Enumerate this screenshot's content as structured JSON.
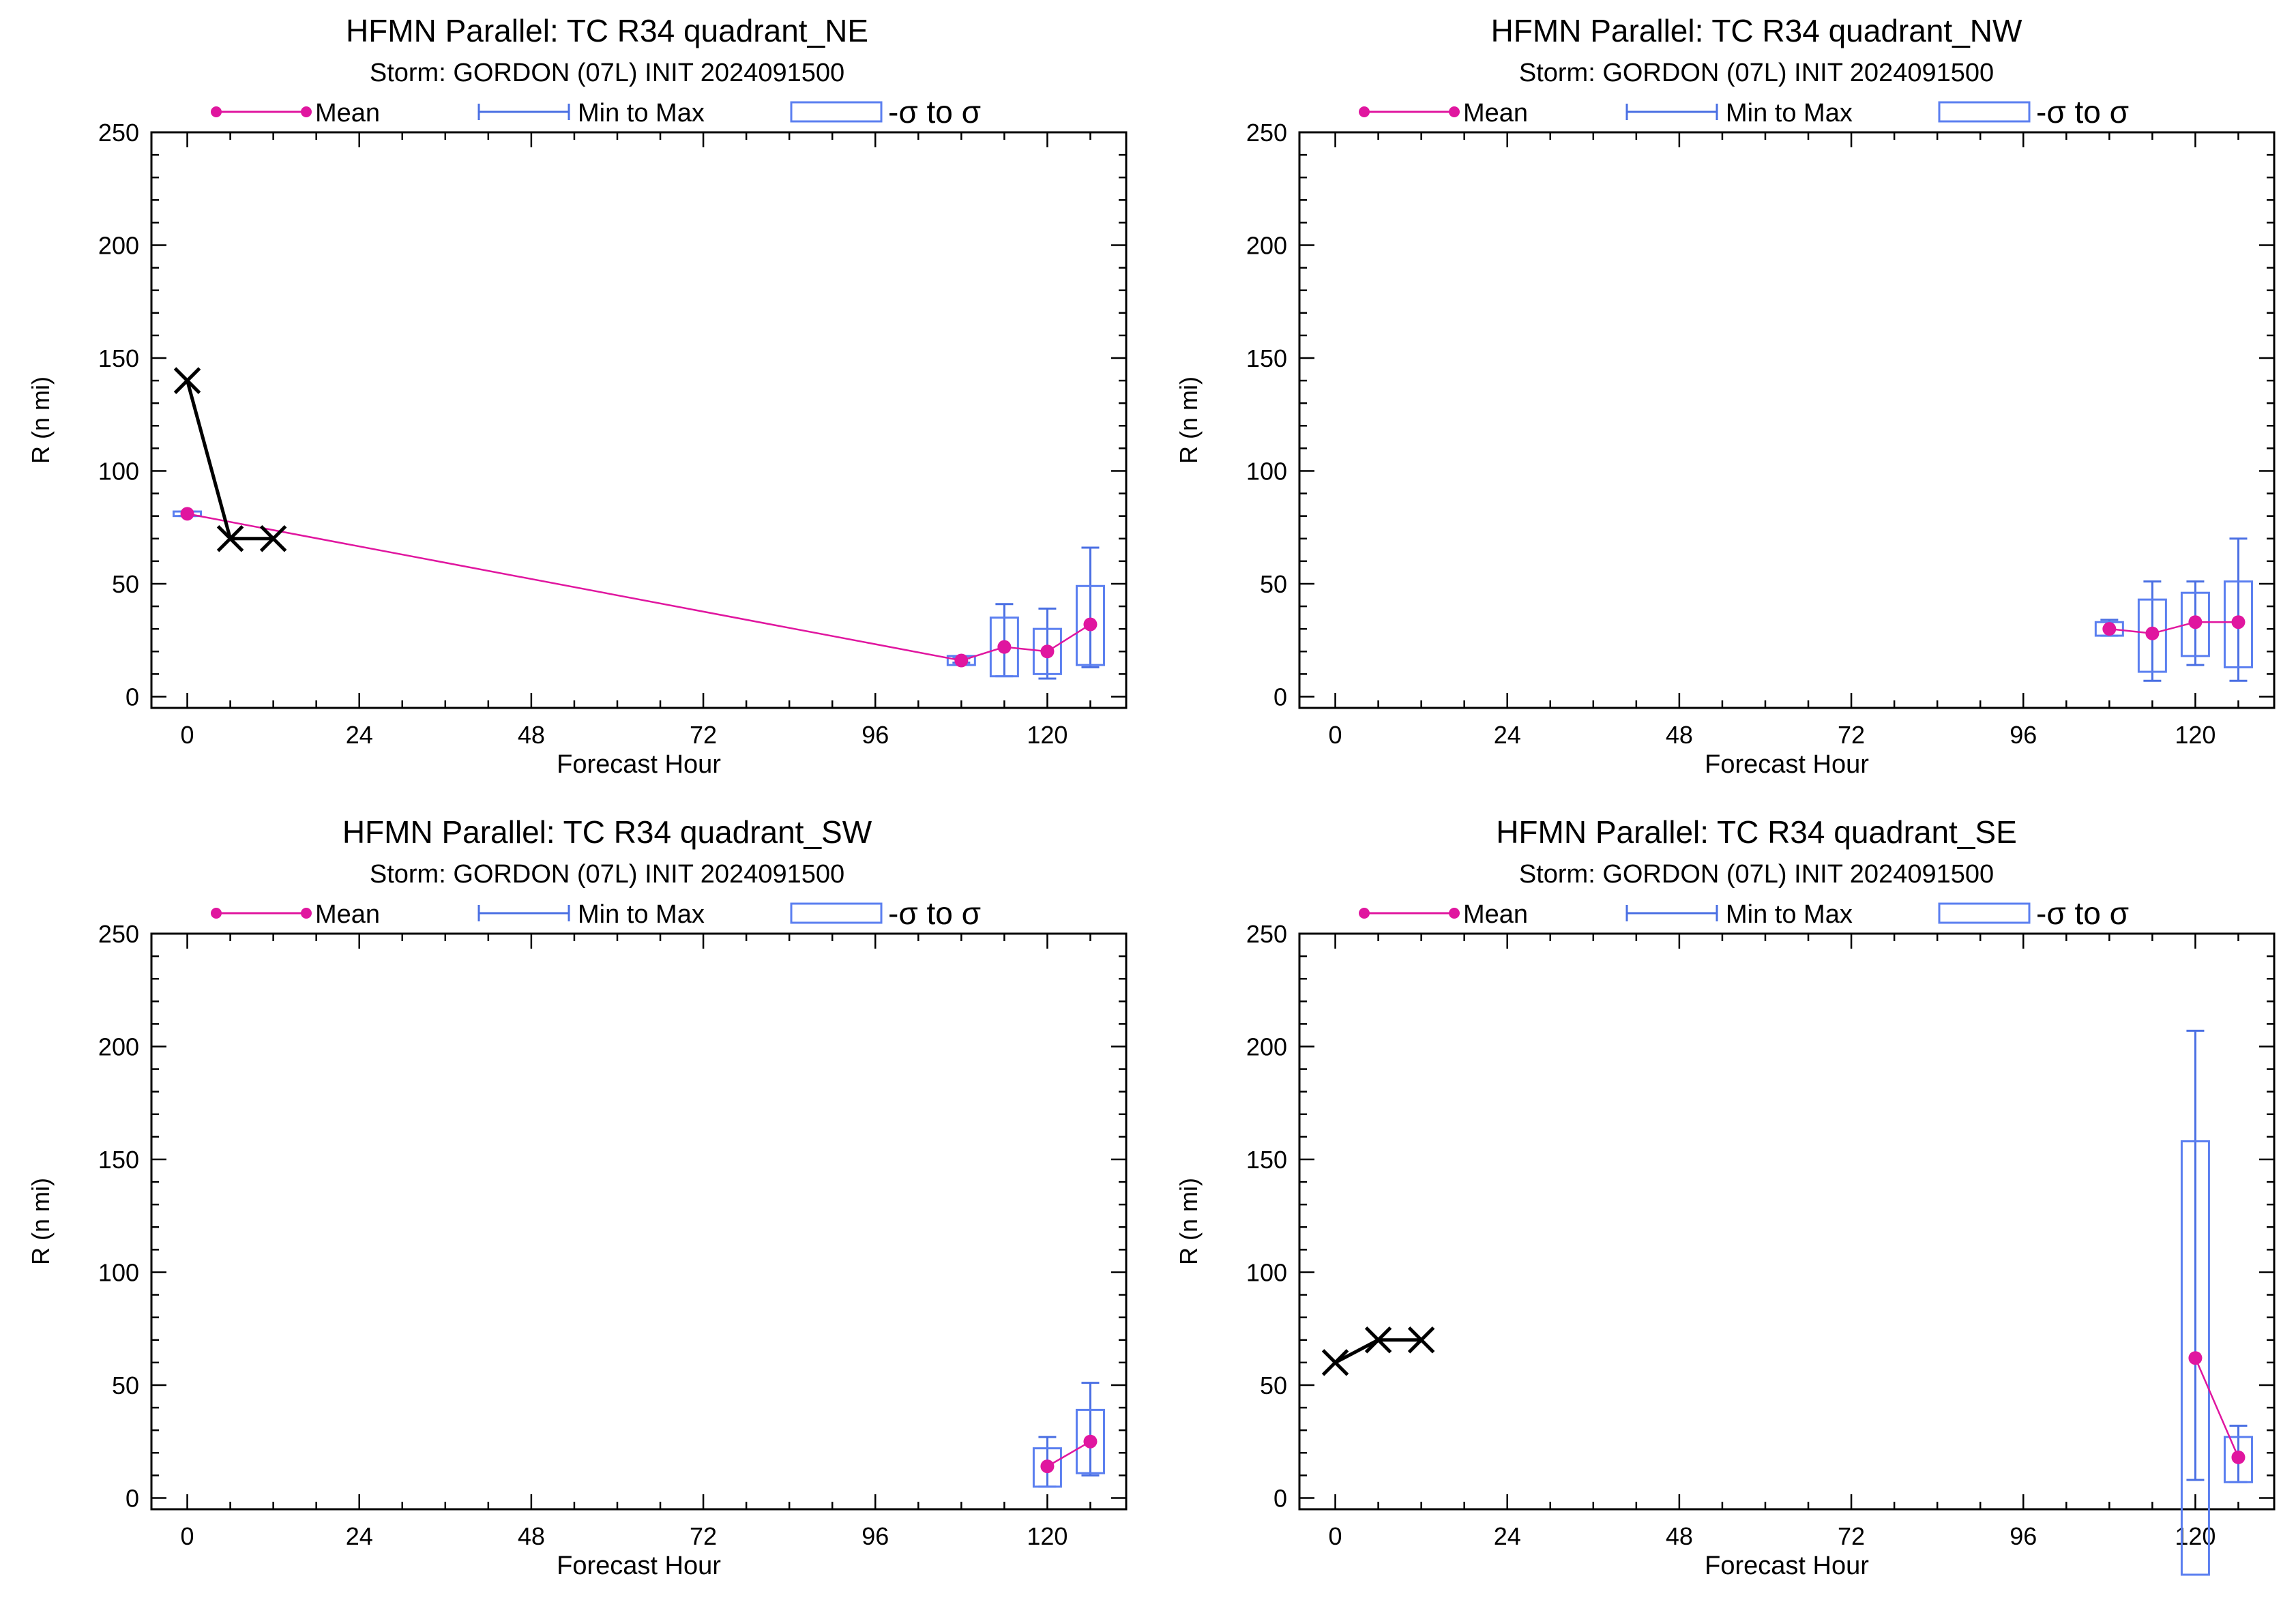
{
  "chart_data": [
    {
      "type": "line",
      "title": "HFMN Parallel: TC  R34 quadrant_NE",
      "subtitle": "Storm: GORDON (07L) INIT 2024091500",
      "xlabel": "Forecast Hour",
      "ylabel": "R (n mi)",
      "xlim": [
        -5,
        131
      ],
      "ylim": [
        -5,
        250
      ],
      "xticks": [
        "0",
        "24",
        "48",
        "72",
        "96",
        "120"
      ],
      "yticks": [
        "0",
        "50",
        "100",
        "150",
        "200",
        "250"
      ],
      "legend": [
        "Mean",
        "Min to Max",
        "-σ to σ"
      ],
      "legend_position": "top",
      "observed": {
        "x": [
          0,
          6,
          12
        ],
        "y": [
          140,
          70,
          70
        ]
      },
      "ensemble": [
        {
          "hour": 0,
          "mean": 81,
          "min": 80,
          "max": 82,
          "sd_low": 80,
          "sd_high": 82
        },
        {
          "hour": 108,
          "mean": 16,
          "min": 15,
          "max": 17,
          "sd_low": 14,
          "sd_high": 18
        },
        {
          "hour": 114,
          "mean": 22,
          "min": 9,
          "max": 41,
          "sd_low": 9,
          "sd_high": 35
        },
        {
          "hour": 120,
          "mean": 20,
          "min": 8,
          "max": 39,
          "sd_low": 10,
          "sd_high": 30
        },
        {
          "hour": 126,
          "mean": 32,
          "min": 13,
          "max": 66,
          "sd_low": 14,
          "sd_high": 49
        }
      ]
    },
    {
      "type": "line",
      "title": "HFMN Parallel: TC  R34 quadrant_NW",
      "subtitle": "Storm: GORDON (07L) INIT 2024091500",
      "xlabel": "Forecast Hour",
      "ylabel": "R (n mi)",
      "xlim": [
        -5,
        131
      ],
      "ylim": [
        -5,
        250
      ],
      "xticks": [
        "0",
        "24",
        "48",
        "72",
        "96",
        "120"
      ],
      "yticks": [
        "0",
        "50",
        "100",
        "150",
        "200",
        "250"
      ],
      "legend": [
        "Mean",
        "Min to Max",
        "-σ to σ"
      ],
      "legend_position": "top",
      "observed": {
        "x": [],
        "y": []
      },
      "ensemble": [
        {
          "hour": 108,
          "mean": 30,
          "min": 27,
          "max": 34,
          "sd_low": 27,
          "sd_high": 33
        },
        {
          "hour": 114,
          "mean": 28,
          "min": 7,
          "max": 51,
          "sd_low": 11,
          "sd_high": 43
        },
        {
          "hour": 120,
          "mean": 33,
          "min": 14,
          "max": 51,
          "sd_low": 18,
          "sd_high": 46
        },
        {
          "hour": 126,
          "mean": 33,
          "min": 7,
          "max": 70,
          "sd_low": 13,
          "sd_high": 51
        }
      ]
    },
    {
      "type": "line",
      "title": "HFMN Parallel: TC  R34 quadrant_SW",
      "subtitle": "Storm: GORDON (07L) INIT 2024091500",
      "xlabel": "Forecast Hour",
      "ylabel": "R (n mi)",
      "xlim": [
        -5,
        131
      ],
      "ylim": [
        -5,
        250
      ],
      "xticks": [
        "0",
        "24",
        "48",
        "72",
        "96",
        "120"
      ],
      "yticks": [
        "0",
        "50",
        "100",
        "150",
        "200",
        "250"
      ],
      "legend": [
        "Mean",
        "Min to Max",
        "-σ to σ"
      ],
      "legend_position": "top",
      "observed": {
        "x": [],
        "y": []
      },
      "ensemble": [
        {
          "hour": 120,
          "mean": 14,
          "min": 5,
          "max": 27,
          "sd_low": 5,
          "sd_high": 22
        },
        {
          "hour": 126,
          "mean": 25,
          "min": 10,
          "max": 51,
          "sd_low": 11,
          "sd_high": 39
        }
      ]
    },
    {
      "type": "line",
      "title": "HFMN Parallel: TC  R34 quadrant_SE",
      "subtitle": "Storm: GORDON (07L) INIT 2024091500",
      "xlabel": "Forecast Hour",
      "ylabel": "R (n mi)",
      "xlim": [
        -5,
        131
      ],
      "ylim": [
        -5,
        250
      ],
      "xticks": [
        "0",
        "24",
        "48",
        "72",
        "96",
        "120"
      ],
      "yticks": [
        "0",
        "50",
        "100",
        "150",
        "200",
        "250"
      ],
      "legend": [
        "Mean",
        "Min to Max",
        "-σ to σ"
      ],
      "legend_position": "top",
      "observed": {
        "x": [
          0,
          6,
          12
        ],
        "y": [
          60,
          70,
          70
        ]
      },
      "ensemble": [
        {
          "hour": 120,
          "mean": 62,
          "min": 8,
          "max": 207,
          "sd_low": -34,
          "sd_high": 158
        },
        {
          "hour": 126,
          "mean": 18,
          "min": 7,
          "max": 32,
          "sd_low": 7,
          "sd_high": 27
        }
      ]
    }
  ],
  "colors": {
    "mean": "#e0169f",
    "minmax": "#4a6fe3",
    "sigma_box": "#5b7ff0",
    "observed": "#000000",
    "axes": "#000000",
    "background": "#ffffff"
  }
}
